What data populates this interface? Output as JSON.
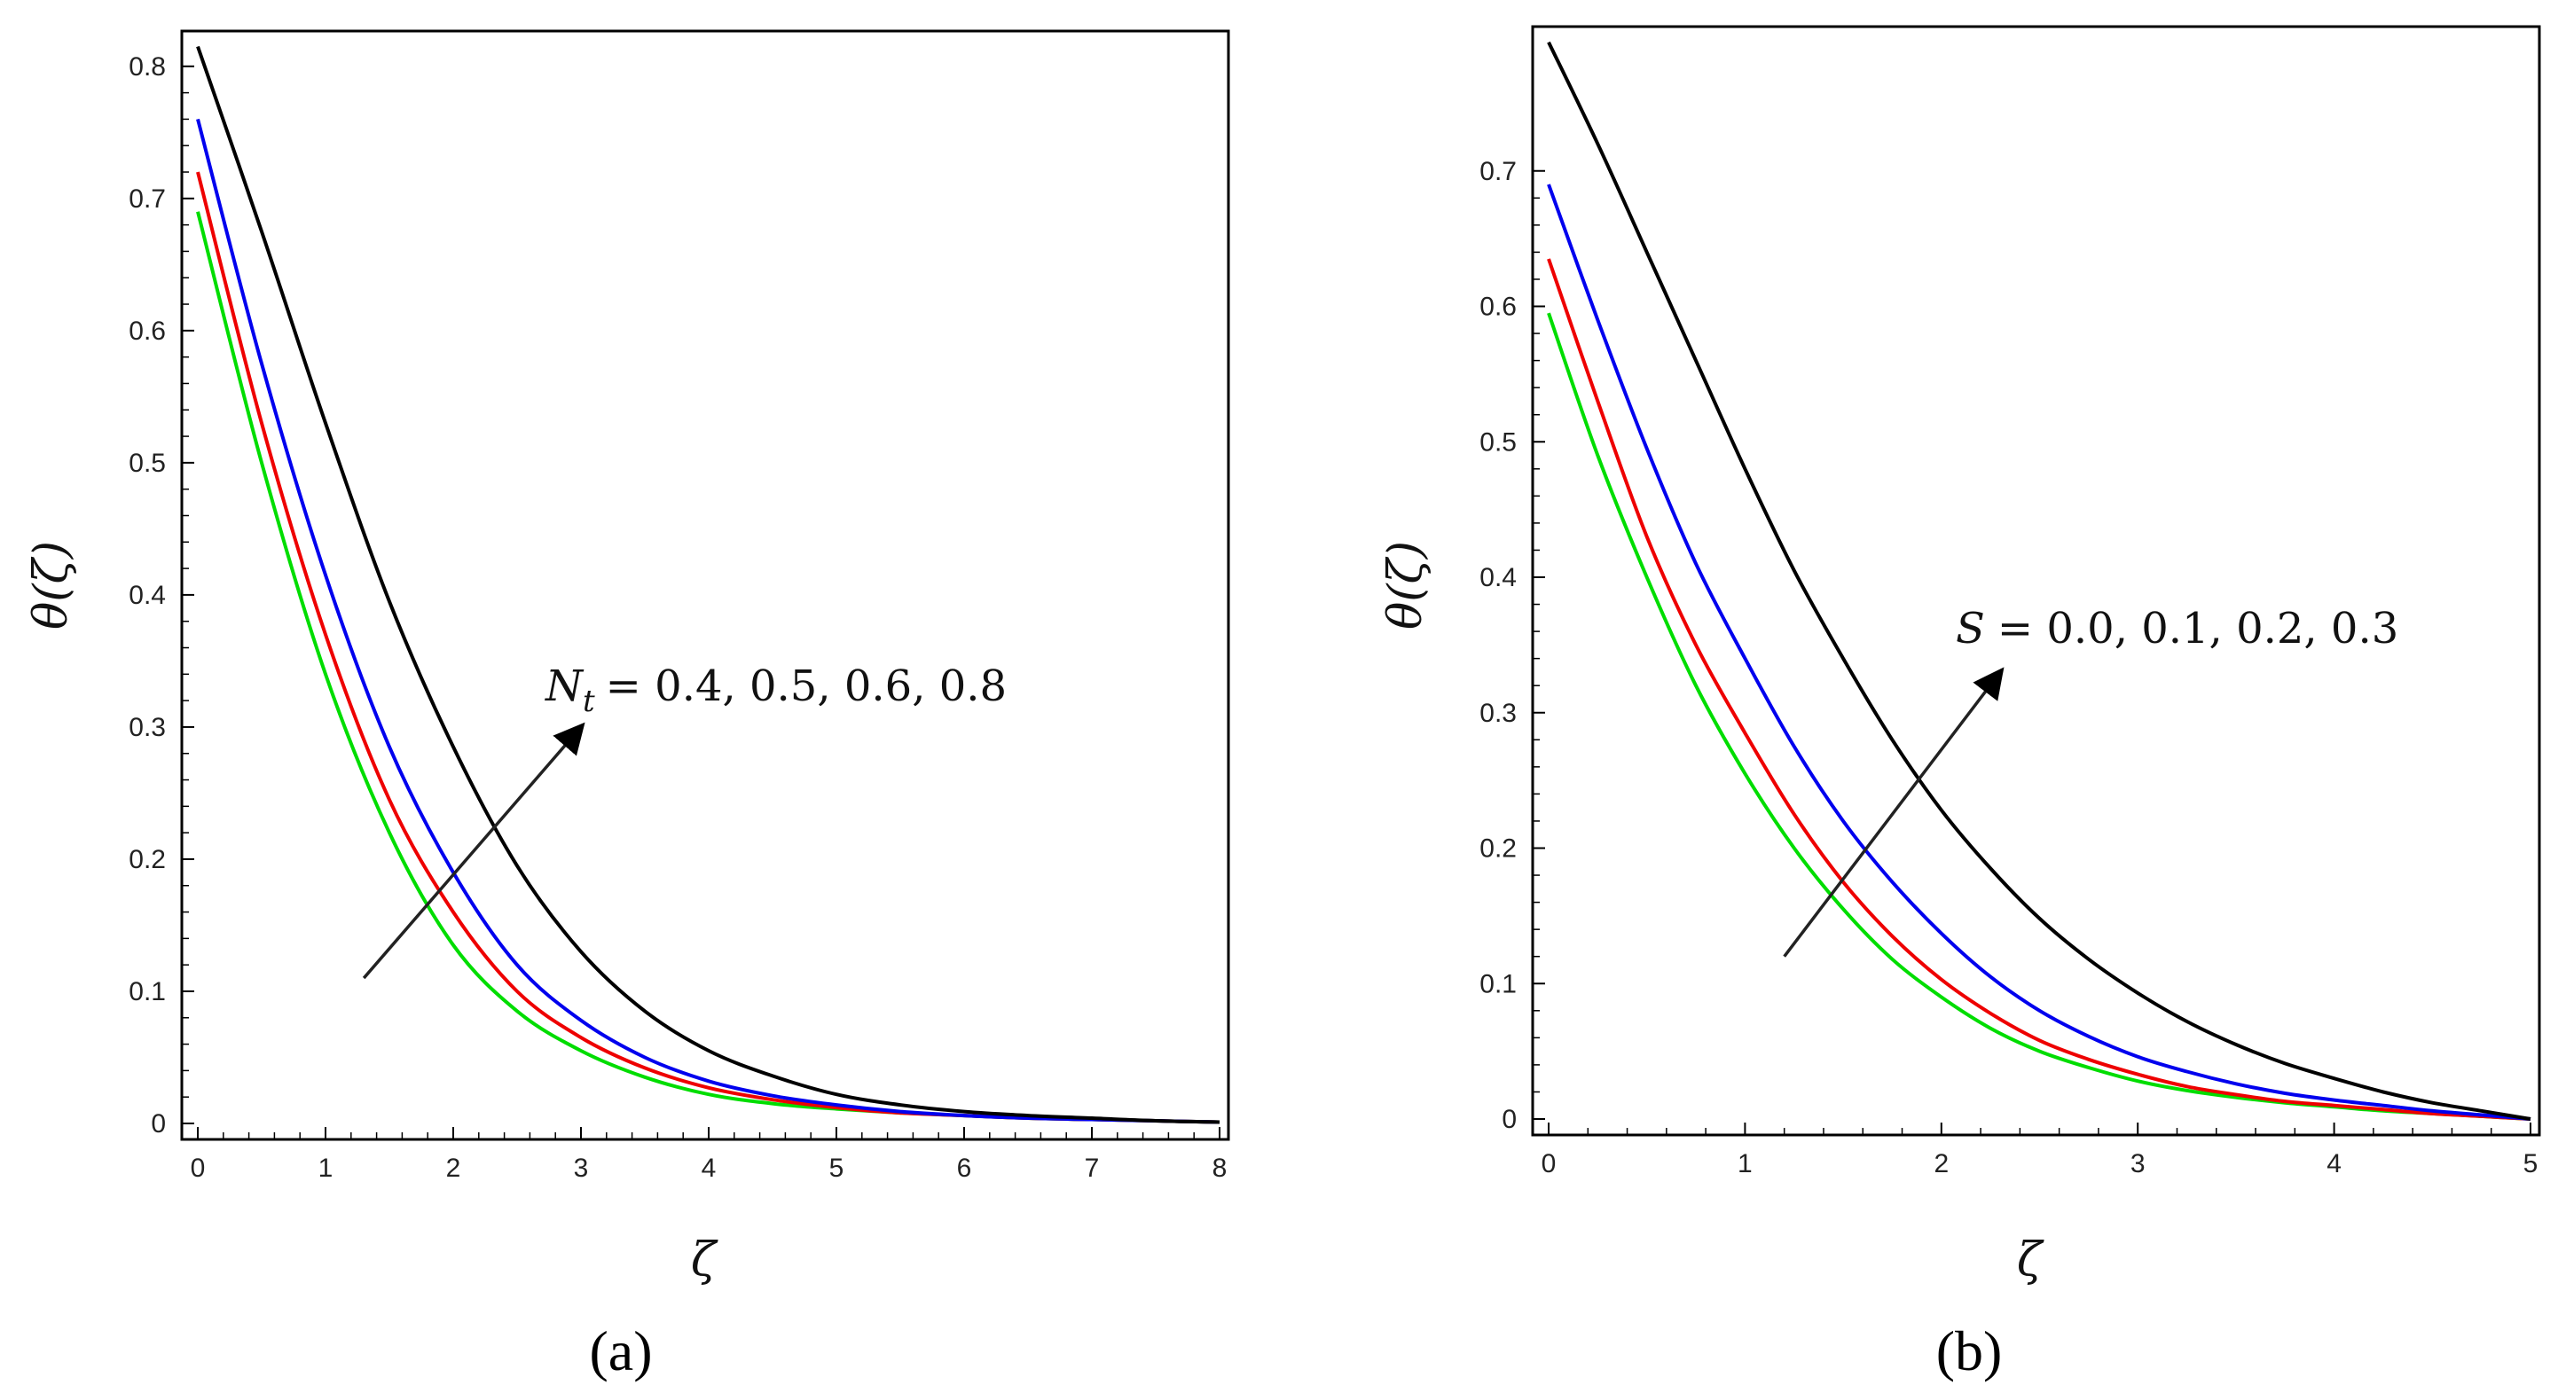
{
  "chart_data": [
    {
      "type": "line",
      "panel_label": "(a)",
      "xlabel": "ζ",
      "ylabel": "θ(ζ)",
      "xlim": [
        0,
        8
      ],
      "ylim": [
        0,
        0.82
      ],
      "xticks": [
        0,
        1,
        2,
        3,
        4,
        5,
        6,
        7,
        8
      ],
      "yticks": [
        0,
        0.1,
        0.2,
        0.3,
        0.4,
        0.5,
        0.6,
        0.7,
        0.8
      ],
      "annotation": {
        "symbol": "N",
        "subscript": "t",
        "values_text": "= 0.4, 0.5, 0.6, 0.8",
        "arrow_from": [
          1.3,
          0.11
        ],
        "arrow_to": [
          3.0,
          0.3
        ]
      },
      "x": [
        0,
        0.5,
        1,
        1.5,
        2,
        2.5,
        3,
        3.5,
        4,
        4.5,
        5,
        5.5,
        6,
        6.5,
        7,
        7.5,
        8
      ],
      "series": [
        {
          "name": "0.4",
          "color": "#00dd00",
          "values": [
            0.69,
            0.5,
            0.34,
            0.22,
            0.135,
            0.085,
            0.055,
            0.035,
            0.022,
            0.015,
            0.011,
            0.008,
            0.006,
            0.004,
            0.003,
            0.002,
            0.001
          ]
        },
        {
          "name": "0.5",
          "color": "#ee0000",
          "values": [
            0.72,
            0.53,
            0.37,
            0.245,
            0.16,
            0.1,
            0.065,
            0.042,
            0.027,
            0.018,
            0.012,
            0.008,
            0.006,
            0.004,
            0.003,
            0.002,
            0.001
          ]
        },
        {
          "name": "0.6",
          "color": "#0000ee",
          "values": [
            0.76,
            0.575,
            0.415,
            0.285,
            0.19,
            0.12,
            0.078,
            0.05,
            0.032,
            0.021,
            0.014,
            0.009,
            0.006,
            0.004,
            0.003,
            0.002,
            0.001
          ]
        },
        {
          "name": "0.8",
          "color": "#000000",
          "values": [
            0.815,
            0.675,
            0.53,
            0.395,
            0.285,
            0.195,
            0.13,
            0.085,
            0.055,
            0.036,
            0.022,
            0.014,
            0.009,
            0.006,
            0.004,
            0.002,
            0.001
          ]
        }
      ]
    },
    {
      "type": "line",
      "panel_label": "(b)",
      "xlabel": "ζ",
      "ylabel": "θ(ζ)",
      "xlim": [
        0,
        5
      ],
      "ylim": [
        0,
        0.8
      ],
      "xticks": [
        0,
        1,
        2,
        3,
        4,
        5
      ],
      "yticks": [
        0,
        0.1,
        0.2,
        0.3,
        0.4,
        0.5,
        0.6,
        0.7
      ],
      "annotation": {
        "symbol": "S",
        "subscript": "",
        "values_text": "= 0.0, 0.1, 0.2, 0.3",
        "arrow_from": [
          1.2,
          0.12
        ],
        "arrow_to": [
          2.3,
          0.33
        ]
      },
      "x": [
        0,
        0.25,
        0.5,
        0.75,
        1,
        1.25,
        1.5,
        1.75,
        2,
        2.25,
        2.5,
        2.75,
        3,
        3.25,
        3.5,
        3.75,
        4,
        4.25,
        4.5,
        4.75,
        5
      ],
      "series": [
        {
          "name": "0.0",
          "color": "#00dd00",
          "values": [
            0.595,
            0.49,
            0.4,
            0.32,
            0.255,
            0.2,
            0.155,
            0.118,
            0.09,
            0.067,
            0.05,
            0.038,
            0.028,
            0.021,
            0.016,
            0.012,
            0.009,
            0.006,
            0.004,
            0.002,
            0.0
          ]
        },
        {
          "name": "0.1",
          "color": "#ee0000",
          "values": [
            0.635,
            0.53,
            0.43,
            0.35,
            0.285,
            0.225,
            0.175,
            0.135,
            0.103,
            0.078,
            0.058,
            0.044,
            0.033,
            0.024,
            0.018,
            0.013,
            0.01,
            0.007,
            0.004,
            0.002,
            0.0
          ]
        },
        {
          "name": "0.2",
          "color": "#0000ee",
          "values": [
            0.69,
            0.59,
            0.495,
            0.41,
            0.34,
            0.275,
            0.22,
            0.175,
            0.137,
            0.105,
            0.08,
            0.061,
            0.046,
            0.035,
            0.026,
            0.019,
            0.014,
            0.01,
            0.006,
            0.003,
            0.0
          ]
        },
        {
          "name": "0.3",
          "color": "#000000",
          "values": [
            0.795,
            0.72,
            0.64,
            0.56,
            0.48,
            0.405,
            0.34,
            0.28,
            0.228,
            0.185,
            0.148,
            0.118,
            0.093,
            0.072,
            0.055,
            0.041,
            0.03,
            0.02,
            0.012,
            0.006,
            0.0
          ]
        }
      ]
    }
  ]
}
